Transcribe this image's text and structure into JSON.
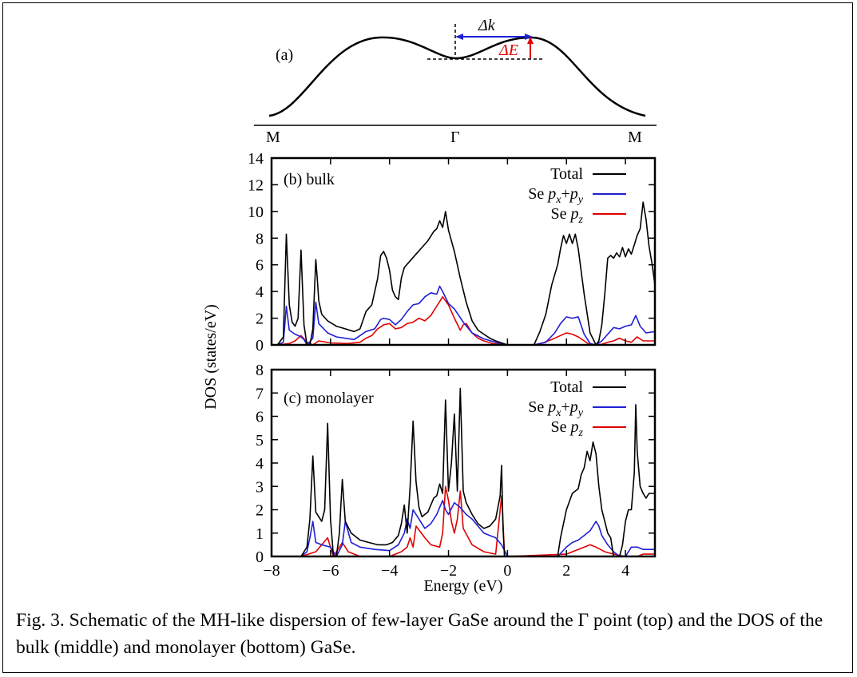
{
  "caption": "Fig. 3. Schematic of the MH-like dispersion of few-layer GaSe around the Γ point (top) and the DOS of the bulk (middle) and monolayer (bottom) GaSe.",
  "panel_a": {
    "label": "(a)",
    "dk_label": "Δk",
    "de_label": "ΔE",
    "k_labels": [
      "M",
      "Γ",
      "M"
    ],
    "colors": {
      "dk_arrow": "#1f1fd6",
      "de_arrow": "#e00000"
    }
  },
  "chart_data": [
    {
      "type": "line",
      "panel": "(b) bulk",
      "xlabel": "Energy (eV)",
      "ylabel": "DOS (states/eV)",
      "xlim": [
        -8,
        5
      ],
      "ylim": [
        0,
        14
      ],
      "yticks": [
        0,
        2,
        4,
        6,
        8,
        10,
        12,
        14
      ],
      "legend_position": "top-right",
      "series": [
        {
          "name": "Total",
          "color": "#000000",
          "x": [
            -7.8,
            -7.6,
            -7.5,
            -7.4,
            -7.3,
            -7.2,
            -7.1,
            -7.0,
            -6.9,
            -6.8,
            -6.7,
            -6.6,
            -6.5,
            -6.45,
            -6.4,
            -6.3,
            -6.1,
            -5.8,
            -5.5,
            -5.2,
            -5.0,
            -4.8,
            -4.6,
            -4.4,
            -4.3,
            -4.2,
            -4.1,
            -4.0,
            -3.9,
            -3.8,
            -3.7,
            -3.6,
            -3.5,
            -3.3,
            -3.1,
            -2.9,
            -2.7,
            -2.5,
            -2.4,
            -2.3,
            -2.2,
            -2.1,
            -2.0,
            -1.8,
            -1.6,
            -1.4,
            -1.2,
            -1.0,
            -0.8,
            -0.6,
            -0.4,
            -0.2,
            0.0,
            0.9,
            1.1,
            1.3,
            1.5,
            1.7,
            1.8,
            1.9,
            2.0,
            2.1,
            2.2,
            2.3,
            2.4,
            2.6,
            2.8,
            3.0,
            3.1,
            3.2,
            3.3,
            3.4,
            3.5,
            3.6,
            3.7,
            3.8,
            3.9,
            4.0,
            4.1,
            4.2,
            4.3,
            4.4,
            4.5,
            4.6,
            4.7,
            4.8,
            4.9,
            5.0
          ],
          "y": [
            0,
            0.6,
            8.3,
            3.0,
            1.7,
            1.4,
            2.0,
            7.1,
            1.5,
            0,
            0,
            1.2,
            6.4,
            5.0,
            3.3,
            2.3,
            1.8,
            1.4,
            1.2,
            1.0,
            1.2,
            2.5,
            3.0,
            5.0,
            6.7,
            7.0,
            6.5,
            5.6,
            4.1,
            3.6,
            3.4,
            5.0,
            5.8,
            6.3,
            6.8,
            7.3,
            7.8,
            8.5,
            8.7,
            9.3,
            8.8,
            10.0,
            8.6,
            7.0,
            5.0,
            3.2,
            1.8,
            1.1,
            0.8,
            0.5,
            0.3,
            0.15,
            0,
            0,
            1.0,
            2.3,
            4.5,
            6.0,
            7.2,
            8.2,
            7.6,
            8.3,
            7.6,
            8.3,
            7.2,
            3.8,
            0.9,
            0,
            0.3,
            1.5,
            3.8,
            6.5,
            6.7,
            6.5,
            6.9,
            6.6,
            7.3,
            6.6,
            7.2,
            6.8,
            7.5,
            8.2,
            8.7,
            10.7,
            9.4,
            7.4,
            6.1,
            4.5
          ]
        },
        {
          "name": "Se px+py",
          "color": "#1f1fd6",
          "x": [
            -7.8,
            -7.6,
            -7.5,
            -7.4,
            -7.2,
            -7.0,
            -6.9,
            -6.8,
            -6.6,
            -6.5,
            -6.4,
            -6.1,
            -5.8,
            -5.2,
            -4.8,
            -4.5,
            -4.3,
            -4.2,
            -4.0,
            -3.8,
            -3.6,
            -3.4,
            -3.2,
            -3.0,
            -2.8,
            -2.6,
            -2.4,
            -2.3,
            -2.2,
            -2.0,
            -1.8,
            -1.5,
            -1.2,
            -0.8,
            -0.4,
            0.0,
            0.9,
            1.3,
            1.6,
            1.8,
            2.0,
            2.2,
            2.4,
            2.6,
            2.8,
            3.0,
            3.2,
            3.4,
            3.6,
            3.8,
            4.0,
            4.2,
            4.35,
            4.5,
            4.7,
            5.0
          ],
          "y": [
            0,
            0.2,
            2.9,
            1.1,
            0.8,
            0.6,
            0.4,
            0,
            0.5,
            3.2,
            1.6,
            0.9,
            0.6,
            0.4,
            1.0,
            1.2,
            1.9,
            2.0,
            1.9,
            1.5,
            1.9,
            2.5,
            3.0,
            3.1,
            3.6,
            3.9,
            3.8,
            4.4,
            4.0,
            3.1,
            2.7,
            1.7,
            0.9,
            0.45,
            0.2,
            0,
            0,
            0.2,
            0.9,
            1.6,
            2.1,
            2.0,
            2.1,
            0.8,
            0.1,
            0,
            0.3,
            0.8,
            1.3,
            1.2,
            1.4,
            1.5,
            2.2,
            1.4,
            0.9,
            1.0
          ]
        },
        {
          "name": "Se pz",
          "color": "#e00000",
          "x": [
            -7.8,
            -7.4,
            -7.2,
            -7.0,
            -6.8,
            -6.6,
            -6.4,
            -6.0,
            -5.4,
            -5.0,
            -4.8,
            -4.6,
            -4.4,
            -4.2,
            -4.0,
            -3.8,
            -3.6,
            -3.4,
            -3.2,
            -3.0,
            -2.8,
            -2.6,
            -2.4,
            -2.2,
            -2.0,
            -1.8,
            -1.6,
            -1.5,
            -1.4,
            -1.2,
            -1.0,
            -0.8,
            -0.5,
            0.0,
            0.9,
            1.2,
            1.5,
            1.8,
            2.0,
            2.2,
            2.4,
            2.6,
            2.8,
            3.0,
            3.2,
            3.4,
            3.6,
            3.8,
            4.0,
            4.2,
            4.4,
            4.6,
            5.0
          ],
          "y": [
            0,
            0.1,
            0.3,
            0.7,
            0.2,
            0,
            0.3,
            0.15,
            0.1,
            0.2,
            0.5,
            0.7,
            1.2,
            1.5,
            1.6,
            1.2,
            1.3,
            1.6,
            1.7,
            2.0,
            1.8,
            2.2,
            2.9,
            3.6,
            3.0,
            2.0,
            1.1,
            1.5,
            1.6,
            0.9,
            0.5,
            0.3,
            0.1,
            0,
            0,
            0.15,
            0.4,
            0.7,
            0.9,
            0.8,
            0.6,
            0.3,
            0,
            0,
            0.05,
            0.2,
            0.3,
            0.5,
            0.3,
            0.2,
            0.6,
            0.3,
            0.3
          ]
        }
      ]
    },
    {
      "type": "line",
      "panel": "(c) monolayer",
      "xlabel": "Energy (eV)",
      "ylabel": "DOS (states/eV)",
      "xlim": [
        -8,
        5
      ],
      "ylim": [
        0,
        8
      ],
      "yticks": [
        0,
        1,
        2,
        3,
        4,
        5,
        6,
        7,
        8
      ],
      "xticks": [
        -8,
        -6,
        -4,
        -2,
        0,
        2,
        4
      ],
      "legend_position": "top-right",
      "series": [
        {
          "name": "Total",
          "color": "#000000",
          "x": [
            -7.0,
            -6.8,
            -6.7,
            -6.6,
            -6.5,
            -6.3,
            -6.2,
            -6.1,
            -6.0,
            -5.9,
            -5.8,
            -5.7,
            -5.6,
            -5.5,
            -5.3,
            -5.0,
            -4.7,
            -4.4,
            -4.1,
            -3.9,
            -3.7,
            -3.6,
            -3.5,
            -3.4,
            -3.3,
            -3.2,
            -3.1,
            -3.0,
            -2.9,
            -2.7,
            -2.5,
            -2.4,
            -2.3,
            -2.2,
            -2.1,
            -2.0,
            -1.9,
            -1.8,
            -1.7,
            -1.6,
            -1.5,
            -1.4,
            -1.2,
            -1.0,
            -0.8,
            -0.6,
            -0.4,
            -0.25,
            -0.2,
            -0.15,
            -0.1,
            0.0,
            1.7,
            1.8,
            2.0,
            2.2,
            2.4,
            2.5,
            2.6,
            2.7,
            2.8,
            2.9,
            3.0,
            3.1,
            3.2,
            3.3,
            3.4,
            3.5,
            3.6,
            3.8,
            3.9,
            4.0,
            4.1,
            4.2,
            4.3,
            4.35,
            4.4,
            4.5,
            4.6,
            4.7,
            4.8,
            5.0
          ],
          "y": [
            0,
            0.4,
            1.6,
            4.3,
            1.9,
            1.5,
            2.0,
            5.7,
            1.6,
            0,
            0,
            1.0,
            3.3,
            1.5,
            1.0,
            0.7,
            0.6,
            0.5,
            0.5,
            0.6,
            0.9,
            1.4,
            2.2,
            1.0,
            3.0,
            5.8,
            3.2,
            2.1,
            1.7,
            1.9,
            2.5,
            2.6,
            3.1,
            2.7,
            6.7,
            2.8,
            4.0,
            6.1,
            2.8,
            7.2,
            2.8,
            2.3,
            1.8,
            1.4,
            1.2,
            1.3,
            1.6,
            2.6,
            3.9,
            1.2,
            0,
            0,
            0,
            0.8,
            2.0,
            2.7,
            2.9,
            3.5,
            3.8,
            4.5,
            4.1,
            4.9,
            4.4,
            3.0,
            2.0,
            1.5,
            1.0,
            0.8,
            0,
            0,
            0.5,
            1.5,
            2.0,
            2.0,
            3.6,
            6.5,
            4.5,
            3.0,
            2.7,
            2.5,
            2.7,
            2.7
          ]
        },
        {
          "name": "Se px+py",
          "color": "#1f1fd6",
          "x": [
            -7.0,
            -6.8,
            -6.7,
            -6.6,
            -6.5,
            -6.3,
            -6.0,
            -5.8,
            -5.6,
            -5.5,
            -5.3,
            -5.0,
            -4.5,
            -4.0,
            -3.7,
            -3.5,
            -3.4,
            -3.3,
            -3.2,
            -3.0,
            -2.8,
            -2.6,
            -2.4,
            -2.2,
            -2.1,
            -2.0,
            -1.8,
            -1.6,
            -1.4,
            -1.2,
            -1.0,
            -0.8,
            -0.6,
            -0.4,
            -0.2,
            0.0,
            1.7,
            2.0,
            2.2,
            2.4,
            2.6,
            2.8,
            3.0,
            3.1,
            3.2,
            3.4,
            3.6,
            3.8,
            4.0,
            4.2,
            4.4,
            4.6,
            5.0
          ],
          "y": [
            0,
            0.2,
            0.8,
            1.5,
            0.6,
            0.5,
            0.4,
            0,
            0.5,
            1.5,
            0.6,
            0.4,
            0.3,
            0.25,
            0.5,
            1.0,
            1.6,
            1.2,
            2.0,
            1.6,
            1.2,
            1.4,
            1.8,
            2.4,
            2.0,
            1.8,
            2.3,
            2.1,
            1.8,
            1.6,
            1.3,
            1.0,
            0.9,
            0.8,
            0.5,
            0,
            0,
            0.4,
            0.6,
            0.7,
            0.9,
            1.1,
            1.5,
            1.3,
            0.9,
            0.5,
            0.2,
            0,
            0,
            0.4,
            0.4,
            0.3,
            0.3
          ]
        },
        {
          "name": "Se pz",
          "color": "#e00000",
          "x": [
            -7.0,
            -6.5,
            -6.1,
            -6.0,
            -5.9,
            -5.6,
            -5.4,
            -5.0,
            -4.0,
            -3.6,
            -3.4,
            -3.3,
            -3.2,
            -3.1,
            -2.8,
            -2.6,
            -2.3,
            -2.2,
            -2.1,
            -2.0,
            -1.9,
            -1.8,
            -1.7,
            -1.6,
            -1.5,
            -1.2,
            -0.8,
            -0.4,
            -0.2,
            -0.15,
            -0.1,
            0.0,
            2.0,
            2.4,
            2.8,
            3.0,
            3.3,
            3.6,
            4.0,
            4.4,
            4.6,
            5.0
          ],
          "y": [
            0,
            0.2,
            0.8,
            0.4,
            0,
            0.6,
            0.2,
            0,
            0,
            0.2,
            0.4,
            0.8,
            0.4,
            1.3,
            0.8,
            0.5,
            0.4,
            1.0,
            3.0,
            2.4,
            1.5,
            1.0,
            1.6,
            2.8,
            1.2,
            0.5,
            0.2,
            0.1,
            2.6,
            1.5,
            0,
            0,
            0.1,
            0.3,
            0.5,
            0.4,
            0.2,
            0.1,
            0,
            0,
            0.1,
            0.1
          ]
        }
      ]
    }
  ]
}
